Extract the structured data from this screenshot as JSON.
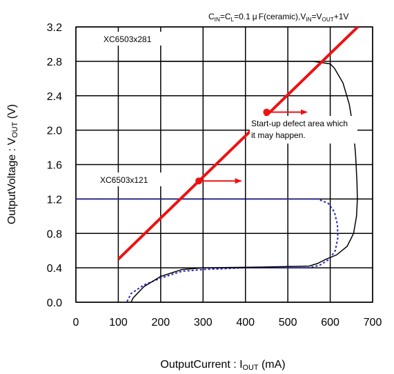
{
  "chart_data": {
    "type": "line",
    "condition": {
      "c_in": "C",
      "c_in_sub": "IN",
      "c_l": "=C",
      "c_l_sub": "L",
      "cap_value": "=0.1",
      "mu": "μ",
      "cap_rest": "F(ceramic),V",
      "vin_sub": "IN",
      "vin_eq": "=V",
      "vout_sub": "OUT",
      "vout_rest": "+1V"
    },
    "xlabel": {
      "main": "OutputCurrent : I",
      "sub": "OUT",
      "unit": " (mA)"
    },
    "ylabel": {
      "main": "OutputVoltage : V",
      "sub": "OUT",
      "unit": " (V)"
    },
    "xlim": [
      0,
      700
    ],
    "ylim": [
      0,
      3.2
    ],
    "x_ticks": [
      "0",
      "100",
      "200",
      "300",
      "400",
      "500",
      "600",
      "700"
    ],
    "y_ticks": [
      "0.0",
      "0.4",
      "0.8",
      "1.2",
      "1.6",
      "2.0",
      "2.4",
      "2.8",
      "3.2"
    ],
    "grid": true,
    "labels": {
      "series_281": "XC6503x281",
      "series_121": "XC6503x121",
      "defect_line1": "Start-up defect area which",
      "defect_line2": "it may happen."
    },
    "series": [
      {
        "name": "XC6503x281",
        "color": "#000000",
        "style": "solid",
        "points": [
          [
            100,
            2.8
          ],
          [
            560,
            2.8
          ],
          [
            600,
            2.77
          ],
          [
            610,
            2.72
          ],
          [
            630,
            2.55
          ],
          [
            645,
            2.3
          ],
          [
            655,
            2.0
          ],
          [
            660,
            1.7
          ],
          [
            663,
            1.4
          ],
          [
            664,
            1.2
          ],
          [
            662,
            1.0
          ],
          [
            655,
            0.8
          ],
          [
            640,
            0.65
          ],
          [
            615,
            0.55
          ],
          [
            590,
            0.5
          ],
          [
            570,
            0.45
          ],
          [
            550,
            0.42
          ],
          [
            450,
            0.41
          ],
          [
            300,
            0.4
          ],
          [
            250,
            0.38
          ],
          [
            200,
            0.3
          ],
          [
            160,
            0.18
          ],
          [
            135,
            0.05
          ],
          [
            130,
            0.0
          ]
        ]
      },
      {
        "name": "XC6503x121",
        "color": "#2222cc",
        "style": "dotted",
        "points": [
          [
            0,
            1.2
          ],
          [
            570,
            1.2
          ],
          [
            595,
            1.15
          ],
          [
            610,
            1.05
          ],
          [
            617,
            0.9
          ],
          [
            618,
            0.75
          ],
          [
            612,
            0.6
          ],
          [
            598,
            0.5
          ],
          [
            575,
            0.43
          ],
          [
            550,
            0.4
          ],
          [
            400,
            0.4
          ],
          [
            300,
            0.38
          ],
          [
            250,
            0.36
          ],
          [
            200,
            0.28
          ],
          [
            160,
            0.2
          ],
          [
            130,
            0.1
          ],
          [
            120,
            0.0
          ]
        ]
      },
      {
        "name": "defect boundary",
        "color": "#ee1111",
        "style": "solid",
        "points": [
          [
            100,
            0.5
          ],
          [
            665,
            3.2
          ]
        ]
      }
    ],
    "markers": [
      {
        "x": 290,
        "y": 1.41,
        "arrow_to_x": 390,
        "color": "#ee1111"
      },
      {
        "x": 450,
        "y": 2.21,
        "arrow_to_x": 545,
        "color": "#ee1111"
      }
    ]
  }
}
